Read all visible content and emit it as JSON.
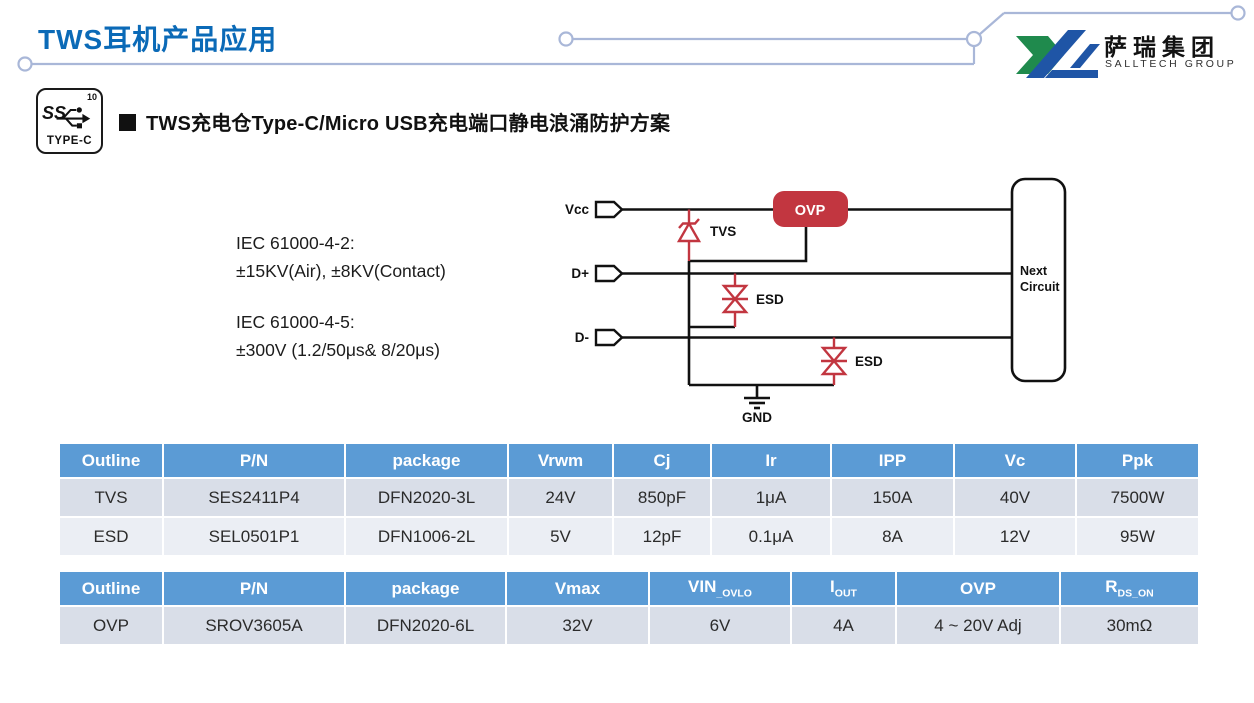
{
  "page": {
    "title": "TWS耳机产品应用",
    "heading": "TWS充电仓Type-C/Micro USB充电端口静电浪涌防护方案"
  },
  "logo": {
    "cn": "萨瑞集团",
    "en": "SALLTECH GROUP",
    "green": "#1f8a4d",
    "blue": "#1f55a6"
  },
  "usb_badge": {
    "ss": "SS",
    "superscript": "10",
    "label": "TYPE-C"
  },
  "standards": {
    "iec1_title": "IEC 61000-4-2:",
    "iec1_value": "±15KV(Air), ±8KV(Contact)",
    "iec2_title": "IEC 61000-4-5:",
    "iec2_value": "±300V  (1.2/50μs& 8/20μs)"
  },
  "diagram": {
    "net_vcc": "Vcc",
    "net_dplus": "D+",
    "net_dminus": "D-",
    "tvs_label": "TVS",
    "esd1_label": "ESD",
    "esd2_label": "ESD",
    "ovp_label": "OVP",
    "gnd_label": "GND",
    "next_line1": "Next",
    "next_line2": "Circuit",
    "red": "#c23640"
  },
  "colors": {
    "title_blue": "#0b6ab7",
    "table_header_bg": "#5b9bd5",
    "table_row_odd": "#d9dee8",
    "table_row_even": "#ebeef4",
    "deco_line": "#a9b7d8"
  },
  "tables": {
    "table1": {
      "headers": [
        "Outline",
        "P/N",
        "package",
        "Vrwm",
        "Cj",
        "Ir",
        "IPP",
        "Vc",
        "Ppk"
      ],
      "rows": [
        [
          "TVS",
          "SES2411P4",
          "DFN2020-3L",
          "24V",
          "850pF",
          "1μA",
          "150A",
          "40V",
          "7500W"
        ],
        [
          "ESD",
          "SEL0501P1",
          "DFN1006-2L",
          "5V",
          "12pF",
          "0.1μA",
          "8A",
          "12V",
          "95W"
        ]
      ]
    },
    "table2": {
      "headers": [
        "Outline",
        "P/N",
        "package",
        "Vmax",
        {
          "text": "VIN",
          "sub": "_OVLO"
        },
        {
          "text": "I",
          "sub": "OUT"
        },
        "OVP",
        {
          "text": "R",
          "sub": "DS_ON"
        }
      ],
      "rows": [
        [
          "OVP",
          "SROV3605A",
          "DFN2020-6L",
          "32V",
          "6V",
          "4A",
          "4 ~ 20V Adj",
          "30mΩ"
        ]
      ]
    }
  }
}
